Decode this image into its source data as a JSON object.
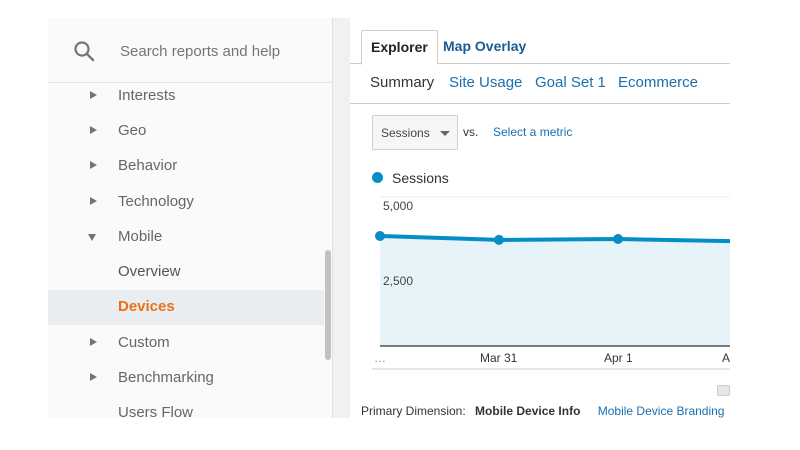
{
  "sidebar": {
    "search": {
      "placeholder": "Search reports and help",
      "icon": "search-icon"
    },
    "items": [
      {
        "label": "Interests",
        "caret": "right",
        "level": 0
      },
      {
        "label": "Geo",
        "caret": "right",
        "level": 0
      },
      {
        "label": "Behavior",
        "caret": "right",
        "level": 0
      },
      {
        "label": "Technology",
        "caret": "right",
        "level": 0
      },
      {
        "label": "Mobile",
        "caret": "down",
        "level": 0
      },
      {
        "label": "Overview",
        "caret": "none",
        "level": 1
      },
      {
        "label": "Devices",
        "caret": "none",
        "level": 1,
        "active": true
      },
      {
        "label": "Custom",
        "caret": "right",
        "level": 0
      },
      {
        "label": "Benchmarking",
        "caret": "right",
        "level": 0
      },
      {
        "label": "Users Flow",
        "caret": "none",
        "level": 0
      }
    ]
  },
  "main": {
    "view_tabs": [
      {
        "label": "Explorer",
        "active": true
      },
      {
        "label": "Map Overlay",
        "active": false
      }
    ],
    "sub_tabs": [
      {
        "label": "Summary",
        "active": true
      },
      {
        "label": "Site Usage",
        "active": false
      },
      {
        "label": "Goal Set 1",
        "active": false
      },
      {
        "label": "Ecommerce",
        "active": false
      }
    ],
    "metric_select": {
      "value": "Sessions"
    },
    "vs_label": "vs.",
    "select_metric_link": "Select a metric",
    "primary_dimension": {
      "label": "Primary Dimension:",
      "active": "Mobile Device Info",
      "link": "Mobile Device Branding"
    }
  },
  "colors": {
    "series": "#058dc7",
    "area_fill": "#e6f3f9",
    "active_nav": "#e8711a",
    "link": "#1a6fb0"
  },
  "chart_data": {
    "type": "area",
    "title": "",
    "legend": [
      "Sessions"
    ],
    "x": [
      "…",
      "Mar 31",
      "Apr 1",
      "A…"
    ],
    "series": [
      {
        "name": "Sessions",
        "values": [
          3690,
          3560,
          3590,
          3520
        ]
      }
    ],
    "yticks": [
      "5,000",
      "2,500"
    ],
    "ylim": [
      0,
      5000
    ],
    "grid": true,
    "legend_position": "top-left"
  }
}
